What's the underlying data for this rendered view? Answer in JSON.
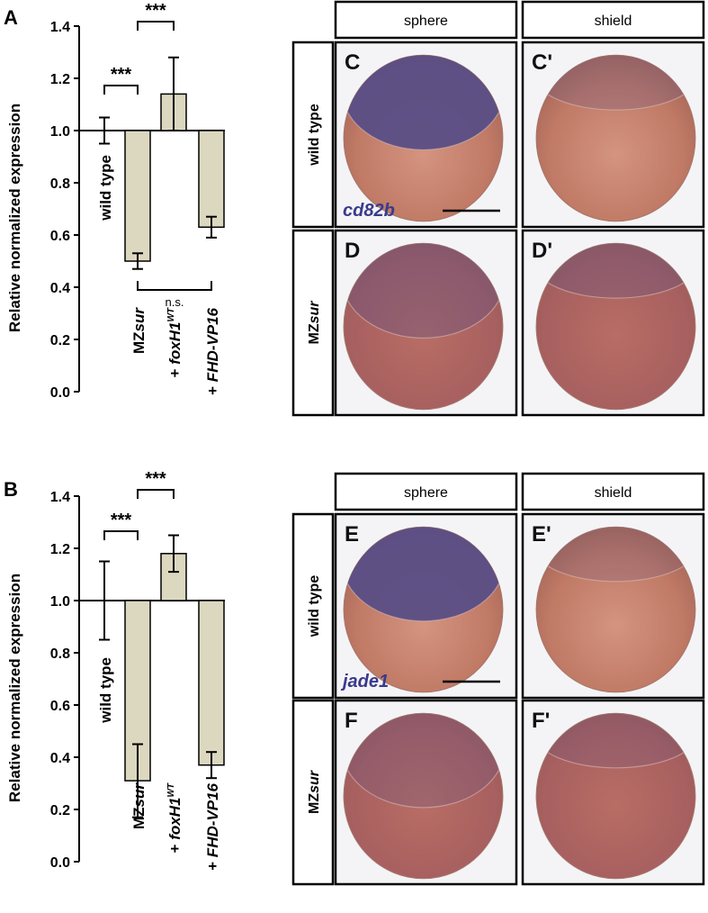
{
  "panel_labels": {
    "A": "A",
    "B": "B"
  },
  "y_axis_label": "Relative normalized expression",
  "y_ticks": [
    "0.0",
    "0.2",
    "0.4",
    "0.6",
    "0.8",
    "1.0",
    "1.2",
    "1.4"
  ],
  "categories": [
    {
      "pre": "",
      "main": "wild type",
      "sup": "",
      "italic": false
    },
    {
      "pre": "MZ",
      "main": "sur",
      "sup": "",
      "italic": true
    },
    {
      "pre": "+ ",
      "main": "foxH1",
      "sup": "WT",
      "italic": true
    },
    {
      "pre": "+ ",
      "main": "FHD-VP16",
      "sup": "",
      "italic": true
    }
  ],
  "significance": {
    "stars": "***",
    "ns": "n.s."
  },
  "chart_data": [
    {
      "type": "bar",
      "panel": "A",
      "ylabel": "Relative normalized expression",
      "ylim": [
        0,
        1.4
      ],
      "baseline": 1.0,
      "categories": [
        "wild type",
        "MZsur",
        "+ foxH1WT",
        "+ FHD-VP16"
      ],
      "values": [
        1.0,
        0.5,
        1.14,
        0.63
      ],
      "error": [
        0.05,
        0.03,
        0.14,
        0.04
      ],
      "annotations": [
        {
          "between": [
            "wild type",
            "MZsur"
          ],
          "label": "***"
        },
        {
          "between": [
            "MZsur",
            "+ foxH1WT"
          ],
          "label": "***"
        },
        {
          "between": [
            "MZsur",
            "+ FHD-VP16"
          ],
          "label": "n.s."
        }
      ]
    },
    {
      "type": "bar",
      "panel": "B",
      "ylabel": "Relative normalized expression",
      "ylim": [
        0,
        1.4
      ],
      "baseline": 1.0,
      "categories": [
        "wild type",
        "MZsur",
        "+ foxH1WT",
        "+ FHD-VP16"
      ],
      "values": [
        1.0,
        0.31,
        1.18,
        0.37
      ],
      "error": [
        0.15,
        0.14,
        0.07,
        0.05
      ],
      "annotations": [
        {
          "between": [
            "wild type",
            "MZsur"
          ],
          "label": "***"
        },
        {
          "between": [
            "MZsur",
            "+ foxH1WT"
          ],
          "label": "***"
        }
      ]
    }
  ],
  "image_panels": [
    {
      "headers": [
        "sphere",
        "shield"
      ],
      "rows": [
        {
          "label_pre": "",
          "label_main": "wild type",
          "label_italic": false,
          "letters": [
            "C",
            "C'"
          ],
          "gene": "cd82b"
        },
        {
          "label_pre": "MZ",
          "label_main": "sur",
          "label_italic": true,
          "letters": [
            "D",
            "D'"
          ],
          "gene": ""
        }
      ],
      "stain": [
        0.95,
        0.25,
        0.35,
        0.3
      ]
    },
    {
      "headers": [
        "sphere",
        "shield"
      ],
      "rows": [
        {
          "label_pre": "",
          "label_main": "wild type",
          "label_italic": false,
          "letters": [
            "E",
            "E'"
          ],
          "gene": "jade1"
        },
        {
          "label_pre": "MZ",
          "label_main": "sur",
          "label_italic": true,
          "letters": [
            "F",
            "F'"
          ],
          "gene": ""
        }
      ],
      "stain": [
        0.95,
        0.2,
        0.25,
        0.2
      ]
    }
  ],
  "colors": {
    "bar_fill": "#dcd8c0",
    "bar_stroke": "#000000",
    "embryo_base": "#c8826e",
    "stain": "#5a4e86"
  }
}
